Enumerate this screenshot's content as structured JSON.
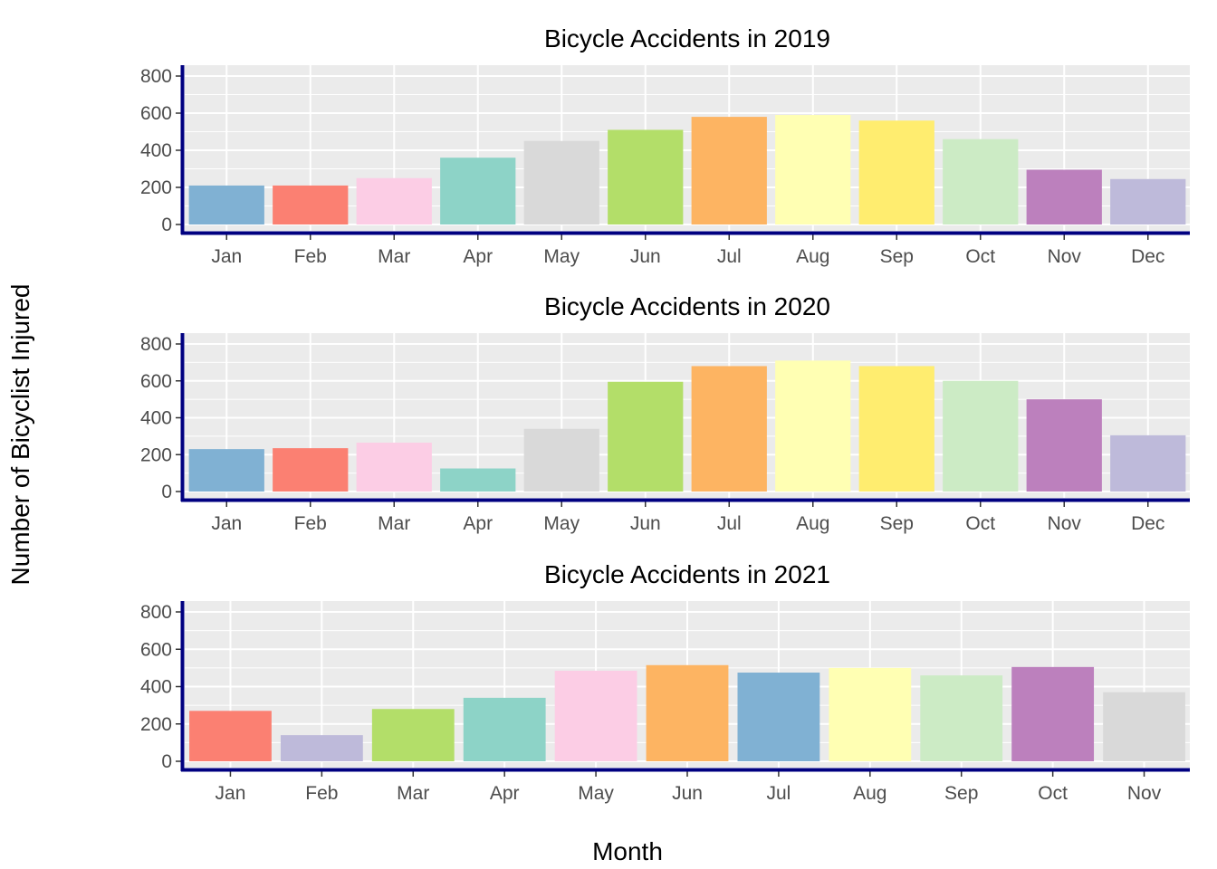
{
  "chart_data": {
    "type": "bar",
    "xlabel": "Month",
    "ylabel": "Number of Bicyclist Injured",
    "ylim": [
      0,
      800
    ],
    "yticks": [
      0,
      200,
      400,
      600,
      800
    ],
    "grid": true,
    "legend": "none",
    "panels": [
      {
        "title": "Bicycle Accidents in 2019",
        "categories": [
          "Jan",
          "Feb",
          "Mar",
          "Apr",
          "May",
          "Jun",
          "Jul",
          "Aug",
          "Sep",
          "Oct",
          "Nov",
          "Dec"
        ],
        "values": [
          210,
          210,
          250,
          360,
          450,
          510,
          580,
          590,
          560,
          460,
          295,
          245
        ],
        "colors": [
          "#80B1D3",
          "#FB8072",
          "#FCCDE5",
          "#8DD3C7",
          "#D9D9D9",
          "#B3DE69",
          "#FDB462",
          "#FFFFB3",
          "#FFED6F",
          "#CCEBC5",
          "#BC80BD",
          "#BEBADA"
        ]
      },
      {
        "title": "Bicycle Accidents in 2020",
        "categories": [
          "Jan",
          "Feb",
          "Mar",
          "Apr",
          "May",
          "Jun",
          "Jul",
          "Aug",
          "Sep",
          "Oct",
          "Nov",
          "Dec"
        ],
        "values": [
          230,
          235,
          265,
          125,
          340,
          595,
          680,
          710,
          680,
          600,
          500,
          305
        ],
        "colors": [
          "#80B1D3",
          "#FB8072",
          "#FCCDE5",
          "#8DD3C7",
          "#D9D9D9",
          "#B3DE69",
          "#FDB462",
          "#FFFFB3",
          "#FFED6F",
          "#CCEBC5",
          "#BC80BD",
          "#BEBADA"
        ]
      },
      {
        "title": "Bicycle Accidents in 2021",
        "categories": [
          "Jan",
          "Feb",
          "Mar",
          "Apr",
          "May",
          "Jun",
          "Jul",
          "Aug",
          "Sep",
          "Oct",
          "Nov"
        ],
        "values": [
          270,
          140,
          280,
          340,
          485,
          515,
          475,
          500,
          460,
          505,
          370
        ],
        "colors": [
          "#FB8072",
          "#BEBADA",
          "#B3DE69",
          "#8DD3C7",
          "#FCCDE5",
          "#FDB462",
          "#80B1D3",
          "#FFFFB3",
          "#CCEBC5",
          "#BC80BD",
          "#D9D9D9"
        ]
      }
    ]
  },
  "colors": {
    "panel_background": "#EBEBEB",
    "grid": "#FFFFFF",
    "axis_line": "#000080",
    "tick_text": "#4D4D4D"
  }
}
